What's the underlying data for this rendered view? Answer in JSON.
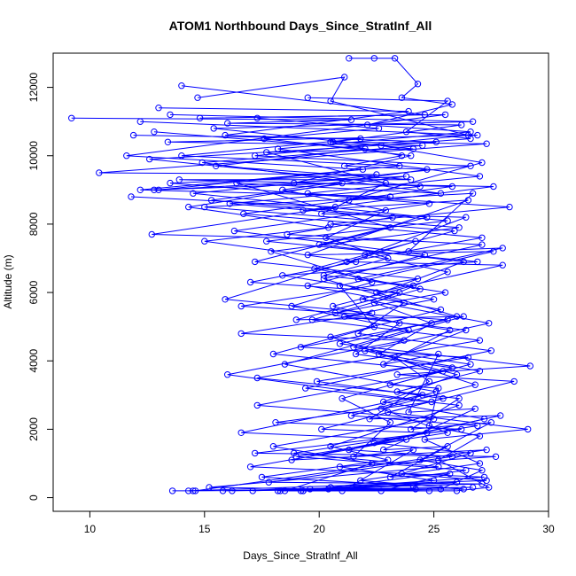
{
  "chart_data": {
    "type": "line",
    "title": "ATOM1 Northbound Days_Since_StratInf_All",
    "xlabel": "Days_Since_StratInf_All",
    "ylabel": "Altitude (m)",
    "xlim": [
      8.4,
      30
    ],
    "ylim": [
      -400,
      13000
    ],
    "xticks": [
      "10",
      "15",
      "20",
      "25",
      "30"
    ],
    "yticks": [
      "0",
      "2000",
      "4000",
      "6000",
      "8000",
      "10000",
      "12000"
    ],
    "color": "#0000ff",
    "marker": "open-circle",
    "grid": false,
    "legend": "none",
    "series": [
      {
        "values": [
          [
            9.2,
            11100
          ],
          [
            21.4,
            11050
          ],
          [
            16.0,
            10950
          ],
          [
            26.2,
            10900
          ],
          [
            20.6,
            10400
          ],
          [
            27.3,
            10350
          ],
          [
            10.4,
            9500
          ],
          [
            22.5,
            9450
          ],
          [
            13.5,
            9200
          ],
          [
            24.8,
            8600
          ],
          [
            16.3,
            7800
          ],
          [
            24.6,
            7100
          ],
          [
            19.5,
            6200
          ],
          [
            25.3,
            5500
          ],
          [
            20.5,
            4700
          ],
          [
            26.8,
            3300
          ],
          [
            22.7,
            2600
          ],
          [
            25.6,
            1900
          ],
          [
            19.0,
            1200
          ],
          [
            26.4,
            800
          ],
          [
            20.5,
            300
          ],
          [
            24.2,
            250
          ],
          [
            14.5,
            200
          ],
          [
            13.6,
            200
          ]
        ]
      },
      {
        "values": [
          [
            11.9,
            10600
          ],
          [
            21.8,
            10500
          ],
          [
            14.0,
            10000
          ],
          [
            23.5,
            9700
          ],
          [
            12.2,
            9000
          ],
          [
            23.1,
            8800
          ],
          [
            15.0,
            8500
          ],
          [
            26.1,
            7900
          ],
          [
            17.9,
            7200
          ],
          [
            22.3,
            6300
          ],
          [
            18.8,
            5600
          ],
          [
            23.9,
            4900
          ],
          [
            18.5,
            3900
          ],
          [
            25.1,
            3100
          ],
          [
            21.4,
            2400
          ],
          [
            26.9,
            2100
          ],
          [
            18.9,
            1300
          ],
          [
            25.2,
            900
          ],
          [
            15.2,
            300
          ],
          [
            24.8,
            200
          ],
          [
            18.2,
            200
          ]
        ]
      },
      {
        "values": [
          [
            12.8,
            10700
          ],
          [
            22.0,
            10200
          ],
          [
            15.5,
            9700
          ],
          [
            24.0,
            9300
          ],
          [
            13.9,
            9300
          ],
          [
            25.8,
            9100
          ],
          [
            16.7,
            8300
          ],
          [
            25.9,
            7800
          ],
          [
            19.8,
            6700
          ],
          [
            24.4,
            6100
          ],
          [
            19.7,
            5200
          ],
          [
            27.0,
            4600
          ],
          [
            17.3,
            3500
          ],
          [
            24.5,
            3000
          ],
          [
            16.6,
            1900
          ],
          [
            23.8,
            1700
          ],
          [
            17.0,
            900
          ],
          [
            27.2,
            600
          ],
          [
            19.6,
            250
          ],
          [
            26.7,
            300
          ],
          [
            16.2,
            200
          ]
        ]
      },
      {
        "values": [
          [
            14.7,
            11700
          ],
          [
            21.1,
            12300
          ],
          [
            20.5,
            11600
          ],
          [
            26.5,
            10600
          ],
          [
            17.2,
            10000
          ],
          [
            26.6,
            9700
          ],
          [
            14.5,
            8900
          ],
          [
            24.7,
            8200
          ],
          [
            20.0,
            7400
          ],
          [
            26.3,
            6900
          ],
          [
            21.9,
            5800
          ],
          [
            27.4,
            5100
          ],
          [
            22.0,
            4300
          ],
          [
            26.0,
            3600
          ],
          [
            22.8,
            2800
          ],
          [
            27.2,
            2300
          ],
          [
            21.3,
            1400
          ],
          [
            25.8,
            1200
          ],
          [
            17.8,
            450
          ],
          [
            27.1,
            400
          ],
          [
            15.8,
            200
          ]
        ]
      },
      {
        "values": [
          [
            21.3,
            12850
          ],
          [
            22.4,
            12850
          ],
          [
            23.3,
            12850
          ],
          [
            24.3,
            12100
          ],
          [
            23.6,
            11700
          ],
          [
            25.8,
            11500
          ],
          [
            22.1,
            10900
          ],
          [
            26.6,
            10700
          ],
          [
            18.2,
            10200
          ],
          [
            27.0,
            9400
          ],
          [
            19.5,
            8900
          ],
          [
            28.3,
            8500
          ],
          [
            20.5,
            8000
          ],
          [
            27.1,
            7600
          ],
          [
            21.2,
            6900
          ],
          [
            28.0,
            6800
          ],
          [
            22.5,
            6000
          ],
          [
            26.0,
            5300
          ],
          [
            20.9,
            4500
          ],
          [
            29.2,
            3850
          ],
          [
            23.4,
            3600
          ],
          [
            28.5,
            3400
          ],
          [
            23.0,
            2500
          ],
          [
            29.1,
            2000
          ],
          [
            24.6,
            1700
          ],
          [
            27.0,
            1000
          ],
          [
            21.8,
            500
          ],
          [
            26.3,
            250
          ],
          [
            19.3,
            200
          ]
        ]
      },
      {
        "values": [
          [
            13.0,
            11400
          ],
          [
            23.9,
            11300
          ],
          [
            15.9,
            10600
          ],
          [
            25.1,
            10400
          ],
          [
            12.6,
            9900
          ],
          [
            24.4,
            9100
          ],
          [
            16.1,
            8600
          ],
          [
            23.2,
            8200
          ],
          [
            18.6,
            7700
          ],
          [
            27.1,
            7400
          ],
          [
            20.2,
            6400
          ],
          [
            23.7,
            5700
          ],
          [
            21.7,
            4800
          ],
          [
            27.5,
            4300
          ],
          [
            19.4,
            3200
          ],
          [
            26.1,
            2700
          ],
          [
            20.5,
            1500
          ],
          [
            23.0,
            1100
          ],
          [
            17.5,
            600
          ],
          [
            24.1,
            350
          ],
          [
            17.1,
            200
          ]
        ]
      },
      {
        "values": [
          [
            14.0,
            12050
          ],
          [
            24.6,
            11200
          ],
          [
            14.8,
            11100
          ],
          [
            25.5,
            11200
          ],
          [
            11.6,
            10000
          ],
          [
            21.9,
            9600
          ],
          [
            13.0,
            9000
          ],
          [
            23.8,
            9400
          ],
          [
            15.3,
            8700
          ],
          [
            25.6,
            8100
          ],
          [
            17.7,
            7500
          ],
          [
            26.9,
            6900
          ],
          [
            18.4,
            6500
          ],
          [
            25.0,
            5800
          ],
          [
            21.1,
            5300
          ],
          [
            26.4,
            4900
          ],
          [
            23.3,
            4100
          ],
          [
            24.8,
            3400
          ],
          [
            22.2,
            2300
          ],
          [
            27.9,
            2400
          ],
          [
            22.4,
            1600
          ],
          [
            26.6,
            1300
          ],
          [
            23.6,
            700
          ],
          [
            27.3,
            500
          ],
          [
            14.3,
            200
          ]
        ]
      },
      {
        "values": [
          [
            17.3,
            11100
          ],
          [
            22.6,
            10800
          ],
          [
            17.6,
            10500
          ],
          [
            24.0,
            10000
          ],
          [
            18.9,
            9200
          ],
          [
            27.6,
            9100
          ],
          [
            19.3,
            8400
          ],
          [
            26.5,
            8700
          ],
          [
            19.5,
            7100
          ],
          [
            27.6,
            7200
          ],
          [
            20.9,
            6200
          ],
          [
            22.4,
            5000
          ],
          [
            18.0,
            4200
          ],
          [
            25.4,
            3700
          ],
          [
            17.3,
            2700
          ],
          [
            25.0,
            2300
          ],
          [
            18.0,
            1500
          ],
          [
            22.3,
            1000
          ],
          [
            18.5,
            200
          ],
          [
            26.0,
            450
          ],
          [
            19.2,
            200
          ]
        ]
      },
      {
        "values": [
          [
            12.2,
            11000
          ],
          [
            26.9,
            10600
          ],
          [
            13.4,
            10400
          ],
          [
            24.5,
            10300
          ],
          [
            14.9,
            9800
          ],
          [
            25.3,
            8900
          ],
          [
            16.4,
            9200
          ],
          [
            23.1,
            7900
          ],
          [
            17.2,
            6900
          ],
          [
            24.3,
            6400
          ],
          [
            16.6,
            5600
          ],
          [
            25.6,
            5200
          ],
          [
            19.2,
            4400
          ],
          [
            26.5,
            4100
          ],
          [
            19.9,
            3400
          ],
          [
            25.4,
            2900
          ],
          [
            20.1,
            2000
          ],
          [
            24.7,
            1900
          ],
          [
            18.8,
            1100
          ],
          [
            27.3,
            1400
          ],
          [
            14.6,
            200
          ]
        ]
      },
      {
        "values": [
          [
            11.8,
            8800
          ],
          [
            20.7,
            8500
          ],
          [
            12.7,
            7700
          ],
          [
            24.2,
            7500
          ],
          [
            15.9,
            5800
          ],
          [
            22.3,
            5400
          ],
          [
            16.6,
            4800
          ],
          [
            23.7,
            4600
          ],
          [
            16.0,
            3600
          ],
          [
            24.9,
            2800
          ],
          [
            18.1,
            2200
          ],
          [
            26.2,
            2000
          ],
          [
            17.2,
            1300
          ],
          [
            27.7,
            1200
          ],
          [
            20.9,
            900
          ],
          [
            25.0,
            500
          ],
          [
            20.4,
            250
          ]
        ]
      },
      {
        "values": [
          [
            13.5,
            11200
          ],
          [
            26.7,
            11000
          ],
          [
            15.4,
            10800
          ],
          [
            24.1,
            10200
          ],
          [
            17.7,
            10100
          ],
          [
            22.9,
            9200
          ],
          [
            20.1,
            8300
          ],
          [
            26.4,
            8200
          ],
          [
            22.0,
            7100
          ],
          [
            25.6,
            6600
          ],
          [
            22.4,
            5700
          ],
          [
            24.9,
            5100
          ],
          [
            22.6,
            4200
          ],
          [
            27.0,
            3700
          ],
          [
            23.4,
            3100
          ],
          [
            26.1,
            2900
          ],
          [
            24.0,
            2000
          ],
          [
            27.5,
            2200
          ],
          [
            24.4,
            1100
          ],
          [
            27.1,
            800
          ],
          [
            25.3,
            250
          ],
          [
            19.3,
            200
          ]
        ]
      },
      {
        "values": [
          [
            19.5,
            11700
          ],
          [
            25.6,
            11600
          ],
          [
            23.8,
            10700
          ],
          [
            26.6,
            10500
          ],
          [
            22.7,
            10300
          ],
          [
            27.1,
            9800
          ],
          [
            21.3,
            8700
          ],
          [
            26.7,
            8900
          ],
          [
            23.9,
            7200
          ],
          [
            28.0,
            7300
          ],
          [
            21.7,
            6400
          ],
          [
            25.5,
            6000
          ],
          [
            20.7,
            5400
          ],
          [
            25.7,
            4900
          ],
          [
            22.8,
            3900
          ],
          [
            25.2,
            4200
          ],
          [
            23.9,
            2500
          ],
          [
            26.8,
            2600
          ],
          [
            22.8,
            1400
          ],
          [
            25.6,
            1500
          ],
          [
            23.1,
            600
          ],
          [
            25.7,
            700
          ],
          [
            22.7,
            200
          ]
        ]
      },
      {
        "values": [
          [
            12.8,
            9000
          ],
          [
            21.0,
            9200
          ],
          [
            14.3,
            8500
          ],
          [
            20.4,
            7900
          ],
          [
            15.0,
            7500
          ],
          [
            21.6,
            6900
          ],
          [
            17.0,
            6300
          ],
          [
            23.5,
            6000
          ],
          [
            19.0,
            5200
          ],
          [
            26.3,
            5300
          ],
          [
            21.5,
            4400
          ],
          [
            26.6,
            3900
          ],
          [
            23.1,
            3300
          ],
          [
            25.2,
            3200
          ],
          [
            24.8,
            2100
          ],
          [
            27.0,
            1800
          ],
          [
            25.2,
            1100
          ],
          [
            27.4,
            300
          ],
          [
            26.0,
            200
          ],
          [
            18.3,
            200
          ]
        ]
      },
      {
        "values": [
          [
            20.5,
            10400
          ],
          [
            23.6,
            10000
          ],
          [
            21.1,
            9700
          ],
          [
            24.7,
            9600
          ],
          [
            18.4,
            9000
          ],
          [
            22.9,
            8400
          ],
          [
            20.3,
            7600
          ],
          [
            23.0,
            7000
          ],
          [
            20.2,
            6500
          ],
          [
            24.1,
            6200
          ],
          [
            20.6,
            5600
          ],
          [
            23.5,
            5100
          ],
          [
            21.6,
            4200
          ],
          [
            25.8,
            3800
          ],
          [
            21.0,
            2900
          ],
          [
            23.1,
            2200
          ],
          [
            21.5,
            1200
          ],
          [
            24.1,
            1400
          ],
          [
            21.0,
            200
          ]
        ]
      }
    ]
  }
}
